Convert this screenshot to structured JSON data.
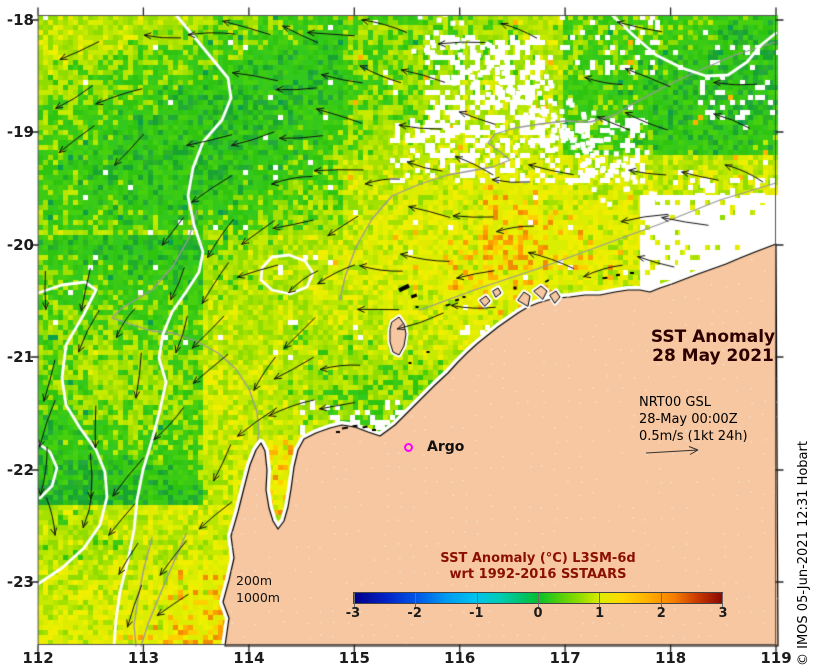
{
  "figure": {
    "title": {
      "line1": "SST Anomaly",
      "line2": "28 May 2021"
    },
    "nrt": {
      "line1": "NRT00 GSL",
      "line2": "28-May 00:00Z",
      "line3": "0.5m/s (1kt 24h)"
    },
    "argo": {
      "label": "Argo"
    },
    "depths": {
      "d200": "200m",
      "d1000": "1000m"
    },
    "credit": "© IMOS 05-Jun-2021 12:31 Hobart"
  },
  "colorbar": {
    "title1": "SST Anomaly (°C) L3SM-6d",
    "title2": "wrt 1992-2016 SSTAARS",
    "tick_labels": [
      "-3",
      "-2",
      "-1",
      "0",
      "1",
      "2",
      "3"
    ],
    "stops": [
      [
        0,
        "#000089"
      ],
      [
        0.09,
        "#0023c8"
      ],
      [
        0.17,
        "#0057e8"
      ],
      [
        0.25,
        "#0099f0"
      ],
      [
        0.33,
        "#00c3ee"
      ],
      [
        0.4,
        "#00ccb0"
      ],
      [
        0.46,
        "#00c267"
      ],
      [
        0.5,
        "#06c12b"
      ],
      [
        0.56,
        "#52cf0a"
      ],
      [
        0.62,
        "#9ade00"
      ],
      [
        0.67,
        "#dfec00"
      ],
      [
        0.73,
        "#ffd800"
      ],
      [
        0.8,
        "#ffae00"
      ],
      [
        0.87,
        "#f67d00"
      ],
      [
        0.93,
        "#cc3c00"
      ],
      [
        1,
        "#8b0800"
      ]
    ]
  },
  "axes": {
    "x_tick_labels": [
      "112",
      "113",
      "114",
      "115",
      "116",
      "117",
      "118",
      "119"
    ],
    "y_tick_labels": [
      "-18",
      "-19",
      "-20",
      "-21",
      "-22",
      "-23"
    ]
  },
  "colors": {
    "land": "#f6c7a0",
    "argo_marker": "#ff00ff",
    "title_text": "#2d0000",
    "colorbar_title_text": "#8b0f00",
    "contour_200m": "#9a9a9a",
    "contour_1000m": "#ffffff",
    "vector_arrows": "#111111"
  },
  "chart_data": {
    "type": "heatmap",
    "title": "SST Anomaly 28 May 2021",
    "variable": "SST Anomaly (°C) L3SM-6d wrt 1992-2016 SSTAARS",
    "colorbar_range": [
      -3,
      3
    ],
    "colorbar_ticks": [
      -3,
      -2,
      -1,
      0,
      1,
      2,
      3
    ],
    "x_axis": {
      "range": [
        112,
        119
      ],
      "ticks": [
        112,
        113,
        114,
        115,
        116,
        117,
        118,
        119
      ]
    },
    "y_axis": {
      "range": [
        -23.6,
        -17.95
      ],
      "ticks": [
        -18,
        -19,
        -20,
        -21,
        -22,
        -23
      ]
    },
    "overlays": [
      "surface current vectors NRT00 GSL 28-May 00:00Z, scale arrow 0.5m/s (1kt 24h)",
      "200m and 1000m depth contours",
      "Argo float position marker"
    ],
    "field_summary": "Mostly +0 to +1 °C (yellow-green/green) over ocean; +1 to +2 °C (orange) patches in southwest corner and Exmouth Gulf; white gaps = missing data; land masked in tan"
  }
}
